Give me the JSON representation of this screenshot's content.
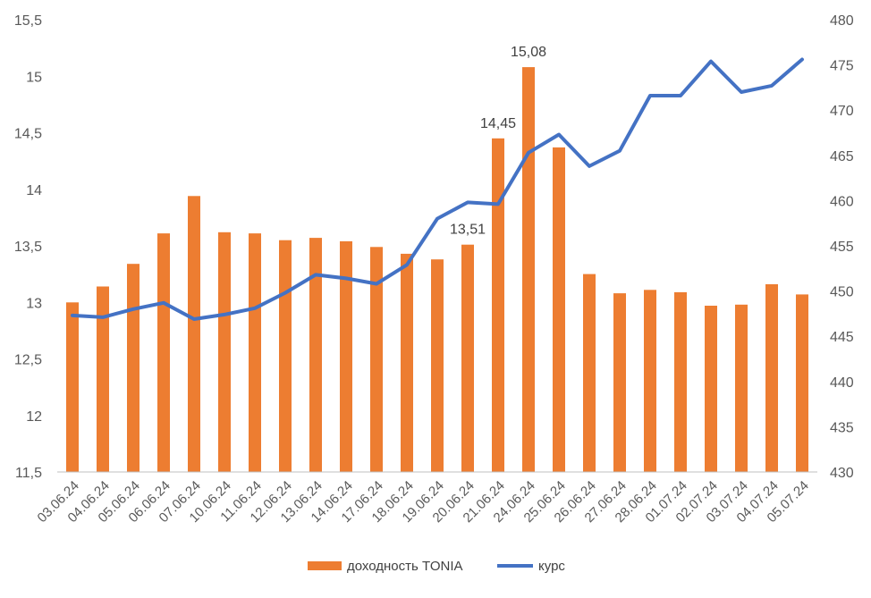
{
  "chart_data": {
    "type": "bar+line",
    "categories": [
      "03.06.24",
      "04.06.24",
      "05.06.24",
      "06.06.24",
      "07.06.24",
      "10.06.24",
      "11.06.24",
      "12.06.24",
      "13.06.24",
      "14.06.24",
      "17.06.24",
      "18.06.24",
      "19.06.24",
      "20.06.24",
      "21.06.24",
      "24.06.24",
      "25.06.24",
      "26.06.24",
      "27.06.24",
      "28.06.24",
      "01.07.24",
      "02.07.24",
      "03.07.24",
      "04.07.24",
      "05.07.24"
    ],
    "series": [
      {
        "name": "доходность TONIA",
        "type": "bar",
        "axis": "left",
        "color": "#ED7D31",
        "values": [
          13.0,
          13.14,
          13.34,
          13.61,
          13.94,
          13.62,
          13.61,
          13.55,
          13.57,
          13.54,
          13.49,
          13.43,
          13.38,
          13.51,
          14.45,
          15.08,
          14.37,
          13.25,
          13.08,
          13.11,
          13.09,
          12.97,
          12.98,
          13.16,
          13.07
        ]
      },
      {
        "name": "курс",
        "type": "line",
        "axis": "right",
        "color": "#4472C4",
        "values": [
          447.3,
          447.1,
          448.0,
          448.7,
          446.9,
          447.4,
          448.1,
          449.8,
          451.8,
          451.4,
          450.8,
          452.9,
          458.0,
          459.8,
          459.6,
          465.3,
          467.3,
          463.8,
          465.5,
          471.6,
          471.6,
          475.4,
          472.0,
          472.7,
          475.6
        ]
      }
    ],
    "data_labels": [
      {
        "index": 13,
        "text": "13,51"
      },
      {
        "index": 14,
        "text": "14,45"
      },
      {
        "index": 15,
        "text": "15,08"
      }
    ],
    "y_left": {
      "ylim": [
        11.5,
        15.5
      ],
      "ticks": [
        11.5,
        12,
        12.5,
        13,
        13.5,
        14,
        14.5,
        15,
        15.5
      ],
      "tick_labels": [
        "11,5",
        "12",
        "12,5",
        "13",
        "13,5",
        "14",
        "14,5",
        "15",
        "15,5"
      ]
    },
    "y_right": {
      "ylim": [
        430,
        480
      ],
      "ticks": [
        430,
        435,
        440,
        445,
        450,
        455,
        460,
        465,
        470,
        475,
        480
      ],
      "tick_labels": [
        "430",
        "435",
        "440",
        "445",
        "450",
        "455",
        "460",
        "465",
        "470",
        "475",
        "480"
      ]
    },
    "title": "",
    "xlabel": "",
    "ylabel": "",
    "grid": false,
    "legend_position": "bottom"
  }
}
